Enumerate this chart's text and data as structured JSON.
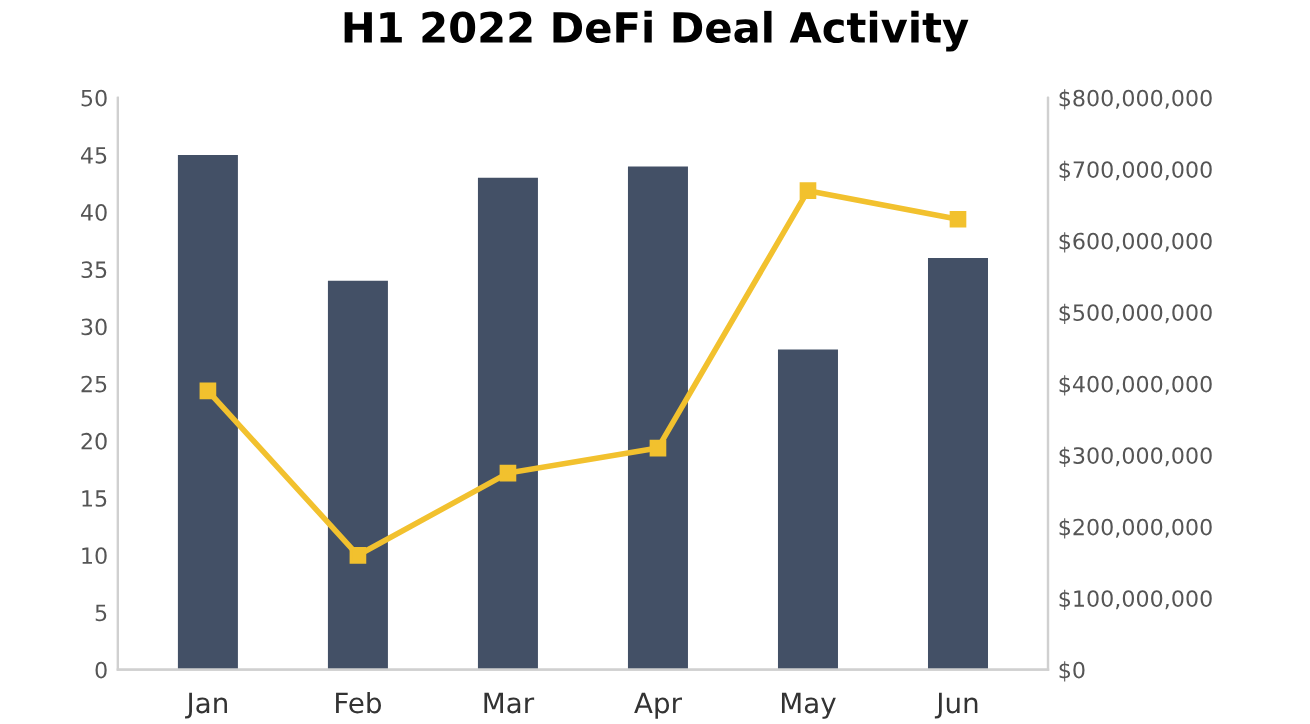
{
  "chart_data": {
    "type": "bar",
    "title": "H1 2022 DeFi Deal Activity",
    "categories": [
      "Jan",
      "Feb",
      "Mar",
      "Apr",
      "May",
      "Jun"
    ],
    "series": [
      {
        "color": "#435066",
        "values": [
          45,
          34,
          43,
          44,
          28,
          36
        ]
      },
      {
        "type": "line",
        "axis": "y2",
        "color": "#f2c12e",
        "marker": "square",
        "line_style": "solid",
        "values": [
          390000000,
          160000000,
          275000000,
          310000000,
          670000000,
          630000000
        ]
      }
    ],
    "ylim": [
      0,
      50
    ],
    "yticks": [
      0,
      5,
      10,
      15,
      20,
      25,
      30,
      35,
      40,
      45,
      50
    ],
    "y2lim": [
      0,
      800000000
    ],
    "y2ticks": [
      {
        "value": 0,
        "label": "$0"
      },
      {
        "value": 100000000,
        "label": "$100,000,000"
      },
      {
        "value": 200000000,
        "label": "$200,000,000"
      },
      {
        "value": 300000000,
        "label": "$300,000,000"
      },
      {
        "value": 400000000,
        "label": "$400,000,000"
      },
      {
        "value": 500000000,
        "label": "$500,000,000"
      },
      {
        "value": 600000000,
        "label": "$600,000,000"
      },
      {
        "value": 700000000,
        "label": "$700,000,000"
      },
      {
        "value": 800000000,
        "label": "$800,000,000"
      }
    ],
    "grid": false,
    "legend": false
  }
}
